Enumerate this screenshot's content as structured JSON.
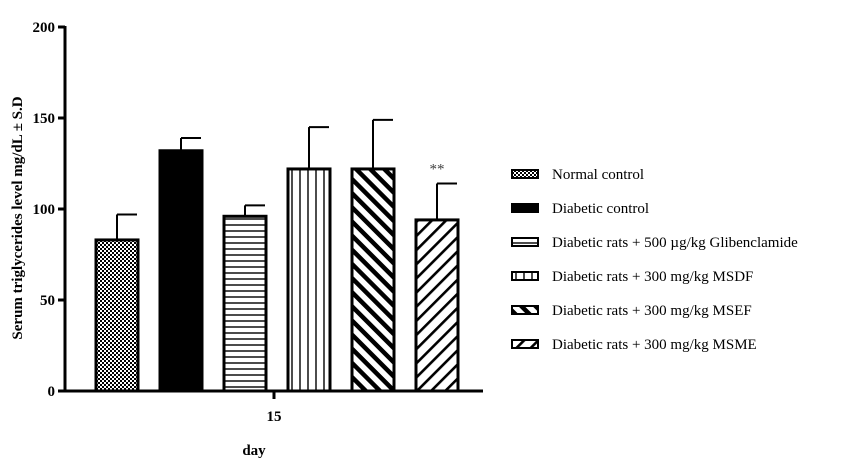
{
  "chart_data": {
    "type": "bar",
    "title": "",
    "xlabel": "day",
    "ylabel": "Serum triglycerides level mg/dL ± S.D",
    "categories": [
      "15"
    ],
    "ylim": [
      0,
      200
    ],
    "yticks": [
      0,
      50,
      100,
      150,
      200
    ],
    "grid": false,
    "legend_position": "right",
    "series": [
      {
        "name": "Normal control",
        "values": [
          83
        ],
        "error": [
          14
        ],
        "pattern": "checker"
      },
      {
        "name": "Diabetic control",
        "values": [
          132
        ],
        "error": [
          7
        ],
        "pattern": "solid"
      },
      {
        "name": "Diabetic rats + 500 µg/kg Glibenclamide",
        "values": [
          96
        ],
        "error": [
          6
        ],
        "pattern": "hlines"
      },
      {
        "name": "Diabetic rats + 300 mg/kg MSDF",
        "values": [
          122
        ],
        "error": [
          23
        ],
        "pattern": "vlines"
      },
      {
        "name": "Diabetic rats + 300 mg/kg MSEF",
        "values": [
          122
        ],
        "error": [
          27
        ],
        "pattern": "diag-back-thick"
      },
      {
        "name": "Diabetic rats + 300 mg/kg MSME",
        "values": [
          94
        ],
        "error": [
          20
        ],
        "pattern": "diag-fwd"
      }
    ],
    "annotations": [
      {
        "series": "Diabetic rats + 300 mg/kg MSME",
        "text": "**"
      }
    ]
  }
}
